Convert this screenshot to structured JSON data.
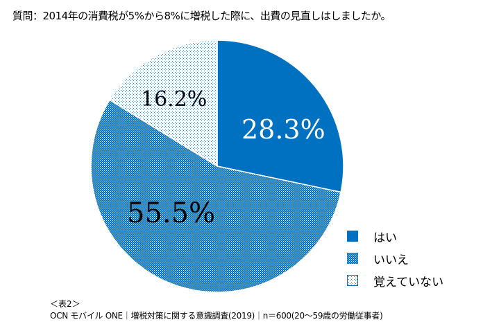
{
  "chart_data": {
    "type": "pie",
    "title": "質問：2014年の消費税が5%から8%に増税した際に、出費の見直しはしましたか。",
    "slices": [
      {
        "label": "はい",
        "value": 28.3,
        "display": "28.3%",
        "color": "#0070C0",
        "pattern": "solid"
      },
      {
        "label": "いいえ",
        "value": 55.5,
        "display": "55.5%",
        "color": "#0070C0",
        "pattern": "dense-checker"
      },
      {
        "label": "覚えていない",
        "value": 16.2,
        "display": "16.2%",
        "color": "#0070C0",
        "pattern": "sparse-dots"
      }
    ],
    "start_angle_deg": 0,
    "direction": "clockwise",
    "legend_position": "bottom-right"
  },
  "notes": {
    "table_label": "＜表2＞",
    "source": "OCN モバイル ONE｜増税対策に関する意識調査(2019)｜n＝600(20～59歳の労働従事者)"
  }
}
